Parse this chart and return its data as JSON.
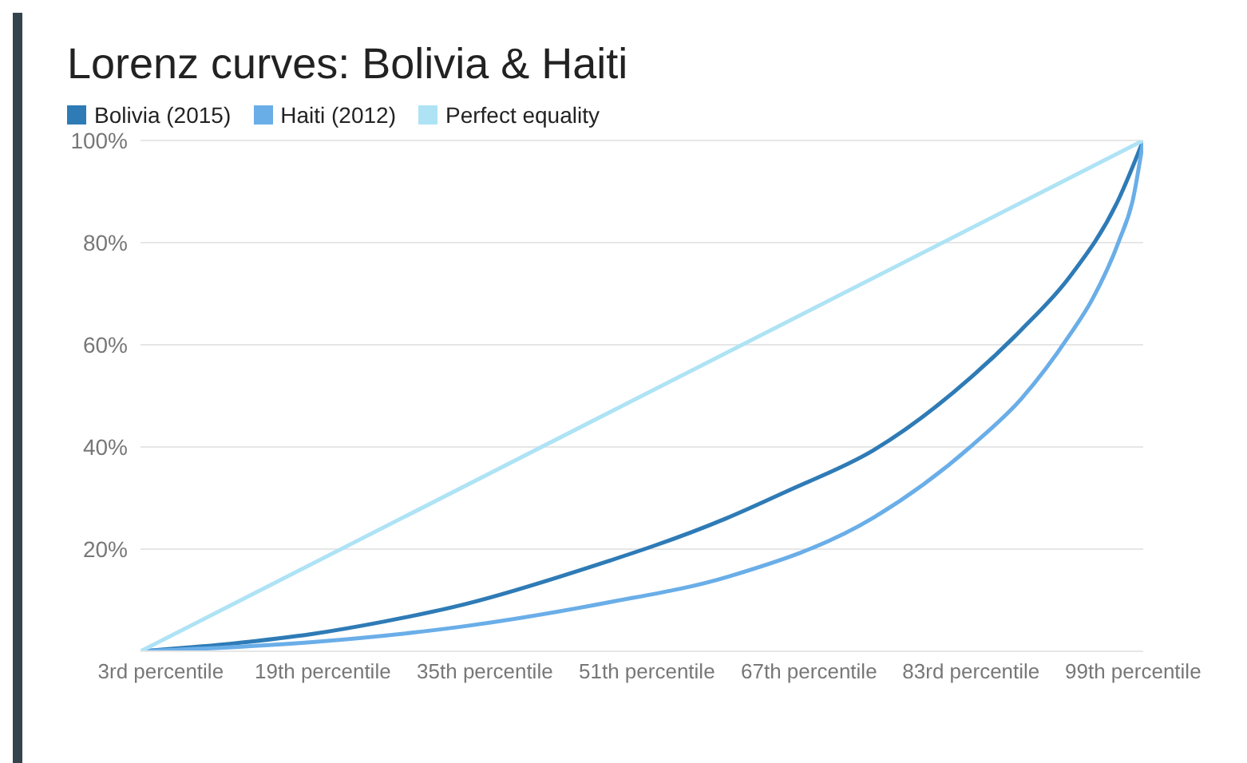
{
  "chart_data": {
    "type": "line",
    "title": "Lorenz curves: Bolivia & Haiti",
    "legend": "top left",
    "grid": "y",
    "marker": "none",
    "line_style": "solid",
    "xlim": [
      1,
      100
    ],
    "xticks": [
      {
        "value": 3,
        "label": "3rd percentile"
      },
      {
        "value": 19,
        "label": "19th percentile"
      },
      {
        "value": 35,
        "label": "35th percentile"
      },
      {
        "value": 51,
        "label": "51th percentile"
      },
      {
        "value": 67,
        "label": "67th percentile"
      },
      {
        "value": 83,
        "label": "83rd percentile"
      },
      {
        "value": 99,
        "label": "99th percentile"
      }
    ],
    "ylim": [
      0,
      100
    ],
    "yticks": [
      {
        "value": 20,
        "label": "20%"
      },
      {
        "value": 40,
        "label": "40%"
      },
      {
        "value": 60,
        "label": "60%"
      },
      {
        "value": 80,
        "label": "80%"
      },
      {
        "value": 100,
        "label": "100%"
      }
    ],
    "series": [
      {
        "name": "Bolivia (2015)",
        "color": "#2e7bb6",
        "x": [
          1,
          10,
          18,
          25,
          33,
          44.3,
          58.8,
          65,
          73.4,
          83.1,
          88,
          92.7,
          97.6,
          100
        ],
        "values": [
          0,
          1.5,
          3.4,
          5.8,
          9.2,
          15.8,
          26,
          31.5,
          39.4,
          53.8,
          63,
          73.2,
          88.6,
          100
        ]
      },
      {
        "name": "Haiti (2012)",
        "color": "#6aaee8",
        "x": [
          1,
          18,
          33,
          47,
          59,
          73.4,
          83.1,
          88,
          92.7,
          95,
          97.6,
          99,
          100
        ],
        "values": [
          0,
          1.8,
          4.9,
          9.5,
          14.6,
          26.2,
          40.3,
          49.5,
          61.8,
          69,
          80.3,
          88.6,
          100
        ]
      },
      {
        "name": "Perfect equality",
        "color": "#aee3f5",
        "x": [
          1,
          100
        ],
        "values": [
          0,
          100
        ]
      }
    ]
  }
}
